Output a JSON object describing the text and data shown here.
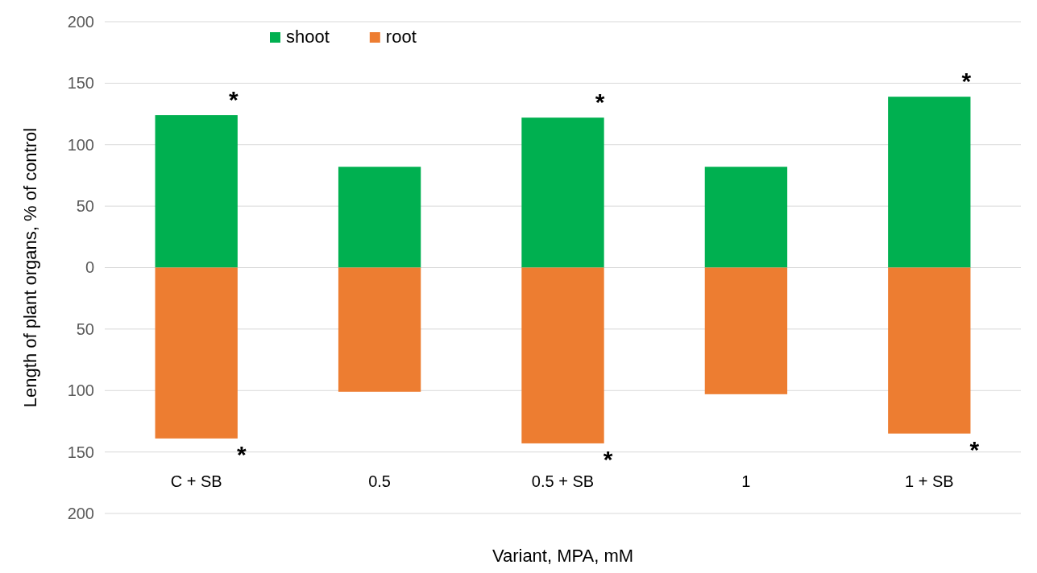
{
  "chart_data": {
    "type": "bar",
    "stacked": true,
    "xlabel": "Variant, MPA, mM",
    "ylabel": "Length of plant organs, % of control",
    "categories": [
      "C + SB",
      "0.5",
      "0.5 + SB",
      "1",
      "1 + SB"
    ],
    "series": [
      {
        "name": "shoot",
        "color": "#00b050",
        "values": [
          124,
          82,
          122,
          82,
          139
        ]
      },
      {
        "name": "root",
        "color": "#ed7d31",
        "values": [
          -139,
          -101,
          -143,
          -103,
          -135
        ]
      }
    ],
    "ylim": [
      -200,
      200
    ],
    "yticks": [
      {
        "value": -200,
        "label": "200"
      },
      {
        "value": -150,
        "label": "150"
      },
      {
        "value": -100,
        "label": "100"
      },
      {
        "value": -50,
        "label": "50"
      },
      0,
      50,
      100,
      150,
      200
    ],
    "grid": "y",
    "legend": "top",
    "annotations": [
      {
        "text": "*",
        "x": "C + SB",
        "y": 124
      },
      {
        "text": "*",
        "x": "0.5 + SB",
        "y": 122
      },
      {
        "text": "*",
        "x": "1 + SB",
        "y": 139
      },
      {
        "text": "*",
        "x": "C + SB",
        "y": -139
      },
      {
        "text": "*",
        "x": "0.5 + SB",
        "y": -143
      },
      {
        "text": "*",
        "x": "1 + SB",
        "y": -135
      }
    ]
  }
}
